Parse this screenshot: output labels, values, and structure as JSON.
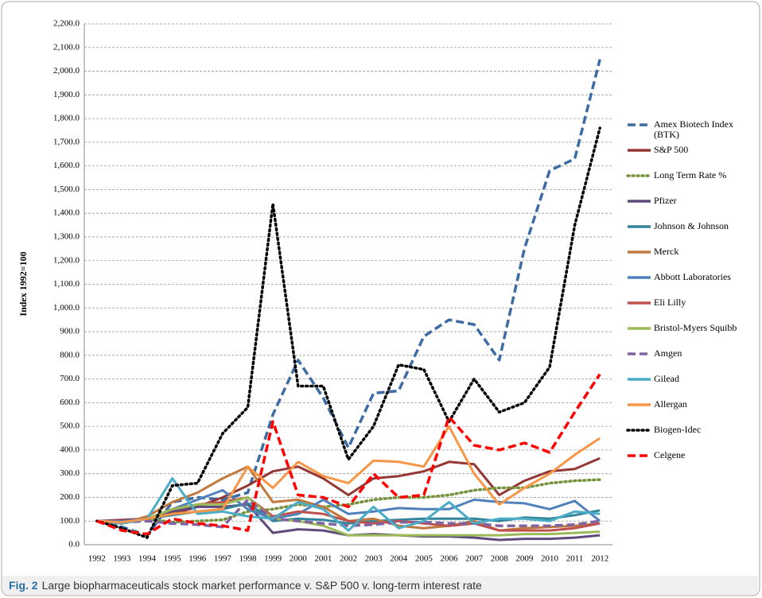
{
  "chart_data": {
    "type": "line",
    "ylabel": "Index 1992=100",
    "caption_label": "Fig. 2",
    "caption": "Large biopharmaceuticals stock market performance v. S&P 500 v. long-term interest rate",
    "categories": [
      "1992",
      "1993",
      "1994",
      "1995",
      "1996",
      "1997",
      "1998",
      "1999",
      "2000",
      "2001",
      "2002",
      "2003",
      "2004",
      "2005",
      "2006",
      "2007",
      "2008",
      "2009",
      "2010",
      "2011",
      "2012"
    ],
    "ylim": [
      0,
      2200
    ],
    "yticks": [
      {
        "value": 0,
        "label": "0.0"
      },
      {
        "value": 100,
        "label": "100.0"
      },
      {
        "value": 200,
        "label": "200.0"
      },
      {
        "value": 300,
        "label": "300.0"
      },
      {
        "value": 400,
        "label": "400.0"
      },
      {
        "value": 500,
        "label": "500.0"
      },
      {
        "value": 600,
        "label": "600.0"
      },
      {
        "value": 700,
        "label": "700.0"
      },
      {
        "value": 800,
        "label": "800.0"
      },
      {
        "value": 900,
        "label": "900.0"
      },
      {
        "value": 1000,
        "label": "1,000.0"
      },
      {
        "value": 1100,
        "label": "1,100.0"
      },
      {
        "value": 1200,
        "label": "1,200.0"
      },
      {
        "value": 1300,
        "label": "1,300.0"
      },
      {
        "value": 1400,
        "label": "1,400.0"
      },
      {
        "value": 1500,
        "label": "1,500.0"
      },
      {
        "value": 1600,
        "label": "1,600.0"
      },
      {
        "value": 1700,
        "label": "1,700.0"
      },
      {
        "value": 1800,
        "label": "1,800.0"
      },
      {
        "value": 1900,
        "label": "1,900.0"
      },
      {
        "value": 2000,
        "label": "2,000.0"
      },
      {
        "value": 2100,
        "label": "2,100.0"
      },
      {
        "value": 2200,
        "label": "2,200.0"
      }
    ],
    "grid": true,
    "legend": "right",
    "series": [
      {
        "name": "Amex Biotech Index (BTK)",
        "color": "#3d6ba3",
        "style": "dashed",
        "values": [
          100,
          75,
          40,
          180,
          200,
          190,
          220,
          550,
          780,
          620,
          410,
          640,
          650,
          880,
          950,
          930,
          780,
          1250,
          1580,
          1630,
          2050
        ]
      },
      {
        "name": "S&P 500",
        "color": "#953735",
        "style": "solid",
        "values": [
          100,
          105,
          110,
          130,
          160,
          200,
          250,
          310,
          330,
          280,
          210,
          280,
          290,
          310,
          350,
          340,
          210,
          270,
          310,
          320,
          365
        ]
      },
      {
        "name": "Long Term Rate %",
        "color": "#77933c",
        "style": "dotted",
        "values": [
          100,
          90,
          110,
          95,
          100,
          105,
          140,
          150,
          170,
          160,
          170,
          190,
          200,
          200,
          210,
          230,
          240,
          240,
          260,
          270,
          275
        ]
      },
      {
        "name": "Pfizer",
        "color": "#604a7b",
        "style": "solid",
        "values": [
          100,
          90,
          110,
          140,
          160,
          160,
          170,
          50,
          65,
          60,
          40,
          45,
          40,
          35,
          35,
          30,
          20,
          25,
          25,
          30,
          40
        ]
      },
      {
        "name": "Johnson & Johnson",
        "color": "#31849b",
        "style": "solid",
        "values": [
          100,
          95,
          110,
          125,
          140,
          150,
          175,
          100,
          110,
          105,
          90,
          100,
          105,
          110,
          110,
          110,
          100,
          115,
          110,
          125,
          145
        ]
      },
      {
        "name": "Merck",
        "color": "#c0793c",
        "style": "solid",
        "values": [
          100,
          90,
          120,
          180,
          220,
          280,
          330,
          180,
          190,
          160,
          100,
          110,
          80,
          70,
          80,
          100,
          60,
          70,
          75,
          80,
          90
        ]
      },
      {
        "name": "Abbott Laboratories",
        "color": "#4f81bd",
        "style": "solid",
        "values": [
          100,
          100,
          110,
          150,
          190,
          230,
          150,
          110,
          130,
          190,
          130,
          140,
          155,
          150,
          150,
          190,
          180,
          175,
          150,
          185,
          100
        ]
      },
      {
        "name": "Eli Lilly",
        "color": "#c0504d",
        "style": "solid",
        "values": [
          100,
          95,
          110,
          150,
          170,
          180,
          200,
          120,
          140,
          130,
          100,
          90,
          100,
          90,
          80,
          90,
          60,
          60,
          60,
          70,
          90
        ]
      },
      {
        "name": "Bristol-Myers Squibb",
        "color": "#9bbb59",
        "style": "solid",
        "values": [
          100,
          90,
          110,
          150,
          170,
          170,
          200,
          110,
          100,
          80,
          40,
          40,
          40,
          40,
          40,
          40,
          40,
          45,
          45,
          50,
          55
        ]
      },
      {
        "name": "Amgen",
        "color": "#8064a2",
        "style": "dashed",
        "values": [
          100,
          95,
          100,
          90,
          85,
          75,
          190,
          110,
          100,
          90,
          80,
          85,
          95,
          95,
          90,
          90,
          80,
          80,
          80,
          85,
          100
        ]
      },
      {
        "name": "Gilead",
        "color": "#4bacc6",
        "style": "solid",
        "values": [
          100,
          90,
          110,
          280,
          130,
          140,
          120,
          110,
          180,
          150,
          60,
          160,
          70,
          100,
          180,
          90,
          110,
          110,
          100,
          140,
          130
        ]
      },
      {
        "name": "Allergan",
        "color": "#f79646",
        "style": "solid",
        "values": [
          100,
          95,
          110,
          130,
          140,
          150,
          330,
          240,
          350,
          290,
          260,
          355,
          350,
          330,
          500,
          300,
          170,
          240,
          300,
          380,
          450
        ]
      },
      {
        "name": "Biogen-Idec",
        "color": "#000000",
        "style": "dotted",
        "values": [
          100,
          70,
          30,
          250,
          260,
          470,
          580,
          1440,
          670,
          670,
          360,
          500,
          760,
          740,
          520,
          700,
          560,
          600,
          750,
          1350,
          1760
        ]
      },
      {
        "name": "Celgene",
        "color": "#ff0000",
        "style": "dashed",
        "values": [
          100,
          60,
          45,
          110,
          90,
          80,
          60,
          520,
          210,
          200,
          160,
          300,
          200,
          210,
          540,
          420,
          400,
          430,
          390,
          560,
          720
        ]
      }
    ]
  }
}
